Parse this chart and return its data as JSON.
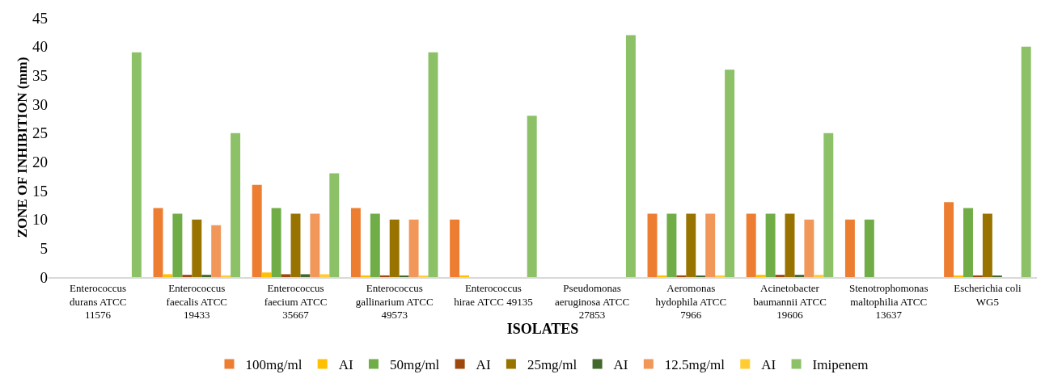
{
  "chart_data": {
    "type": "bar",
    "xlabel": "ISOLATES",
    "ylabel": "ZONE OF INHIBITION (mm)",
    "categories": [
      "Enterococcus durans ATCC 11576",
      "Enterococcus faecalis ATCC 19433",
      "Enterococcus faecium ATCC 35667",
      "Enterococcus gallinarium ATCC 49573",
      "Enterococcus hirae ATCC 49135",
      "Pseudomonas aeruginosa ATCC 27853",
      "Aeromonas hydophila ATCC 7966",
      "Acinetobacter baumannii ATCC 19606",
      "Stenotrophomonas maltophilia ATCC 13637",
      "Escherichia coli WG5"
    ],
    "series": [
      {
        "name": "100mg/ml",
        "color": "#ed7d31",
        "values": [
          0,
          12,
          16,
          12,
          10,
          0,
          11,
          11,
          10,
          13
        ]
      },
      {
        "name": "AI",
        "color": "#ffc000",
        "values": [
          0,
          0.5,
          0.8,
          0.3,
          0.3,
          0,
          0.3,
          0.4,
          0,
          0.3
        ]
      },
      {
        "name": "50mg/ml",
        "color": "#70ad47",
        "values": [
          0,
          11,
          12,
          11,
          0,
          0,
          11,
          11,
          10,
          12
        ]
      },
      {
        "name": "AI",
        "color": "#9e480e",
        "values": [
          0,
          0.4,
          0.5,
          0.3,
          0,
          0,
          0.3,
          0.4,
          0,
          0.3
        ]
      },
      {
        "name": "25mg/ml",
        "color": "#997300",
        "values": [
          0,
          10,
          11,
          10,
          0,
          0,
          11,
          11,
          0,
          11
        ]
      },
      {
        "name": "AI",
        "color": "#43682b",
        "values": [
          0,
          0.4,
          0.5,
          0.2,
          0,
          0,
          0.2,
          0.4,
          0,
          0.2
        ]
      },
      {
        "name": "12.5mg/ml",
        "color": "#f1975a",
        "values": [
          0,
          9,
          11,
          10,
          0,
          0,
          11,
          10,
          0,
          0
        ]
      },
      {
        "name": "AI",
        "color": "#ffcd33",
        "values": [
          0,
          0.3,
          0.5,
          0.2,
          0,
          0,
          0.3,
          0.4,
          0,
          0
        ]
      },
      {
        "name": "Imipenem",
        "color": "#8cc168",
        "values": [
          39,
          25,
          18,
          39,
          28,
          42,
          36,
          25,
          0,
          40
        ]
      }
    ],
    "ylim": [
      0,
      45
    ],
    "yticks": [
      0,
      5,
      10,
      15,
      20,
      25,
      30,
      35,
      40,
      45
    ],
    "legend": "bottom"
  }
}
